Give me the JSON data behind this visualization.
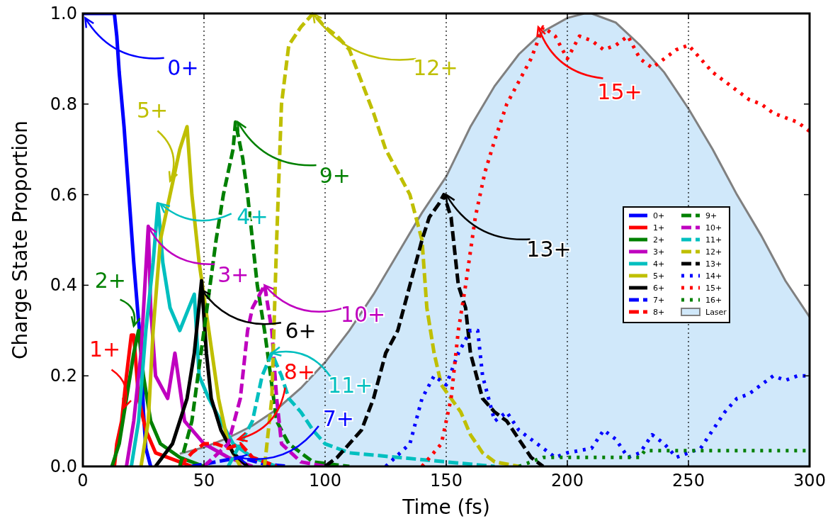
{
  "chart_data": {
    "type": "line",
    "xlabel": "Time (fs)",
    "ylabel": "Charge State Proportion",
    "xlim": [
      0,
      300
    ],
    "ylim": [
      0,
      1
    ],
    "xticks": [
      0,
      50,
      100,
      150,
      200,
      250,
      300
    ],
    "yticks": [
      {
        "value": 0,
        "label": "0.0"
      },
      {
        "value": 0.2,
        "label": "0.2"
      },
      {
        "value": 0.4,
        "label": "0.4"
      },
      {
        "value": 0.6,
        "label": "0.6"
      },
      {
        "value": 0.8,
        "label": "0.8"
      },
      {
        "value": 1,
        "label": "1.0"
      }
    ],
    "grid": "x",
    "legend": "right",
    "series": [
      {
        "name": "Laser",
        "type": "area",
        "color": "#d0e8fa",
        "line_style": "solid",
        "x": [
          40,
          50,
          60,
          70,
          80,
          90,
          100,
          110,
          120,
          130,
          140,
          150,
          160,
          170,
          180,
          190,
          200,
          207,
          210,
          220,
          230,
          240,
          250,
          260,
          270,
          280,
          290,
          300
        ],
        "values": [
          0.028,
          0.042,
          0.063,
          0.09,
          0.126,
          0.173,
          0.23,
          0.3,
          0.38,
          0.47,
          0.56,
          0.64,
          0.75,
          0.84,
          0.91,
          0.96,
          0.99,
          1.0,
          1.0,
          0.98,
          0.93,
          0.87,
          0.79,
          0.7,
          0.6,
          0.51,
          0.41,
          0.33
        ]
      },
      {
        "name": "0+",
        "color": "#0000ff",
        "line_style": "solid",
        "x": [
          0,
          13,
          14,
          15,
          17,
          19,
          21,
          23,
          24,
          25,
          26,
          28
        ],
        "values": [
          1.0,
          1.0,
          0.95,
          0.87,
          0.75,
          0.6,
          0.45,
          0.32,
          0.27,
          0.12,
          0.04,
          0.0
        ]
      },
      {
        "name": "1+",
        "color": "#ff0000",
        "line_style": "solid",
        "x": [
          13,
          14,
          16,
          18,
          20,
          21,
          23,
          26,
          30,
          40,
          45
        ],
        "values": [
          0,
          0.05,
          0.1,
          0.2,
          0.29,
          0.29,
          0.15,
          0.08,
          0.03,
          0.01,
          0
        ]
      },
      {
        "name": "2+",
        "color": "#008000",
        "line_style": "solid",
        "x": [
          12,
          15,
          18,
          21,
          23,
          25,
          28,
          32,
          40,
          50
        ],
        "values": [
          0,
          0.05,
          0.15,
          0.25,
          0.3,
          0.2,
          0.1,
          0.05,
          0.02,
          0
        ]
      },
      {
        "name": "3+",
        "color": "#bf00bf",
        "line_style": "solid",
        "x": [
          18,
          21,
          24,
          27,
          28,
          30,
          35,
          38,
          42,
          50,
          60,
          70
        ],
        "values": [
          0,
          0.1,
          0.25,
          0.53,
          0.35,
          0.2,
          0.15,
          0.25,
          0.1,
          0.05,
          0.02,
          0
        ]
      },
      {
        "name": "4+",
        "color": "#00bfbf",
        "line_style": "solid",
        "x": [
          20,
          23,
          26,
          29,
          31,
          33,
          36,
          40,
          46,
          48,
          52,
          57,
          62,
          70,
          80
        ],
        "values": [
          0,
          0.1,
          0.3,
          0.45,
          0.58,
          0.45,
          0.35,
          0.3,
          0.38,
          0.2,
          0.15,
          0.1,
          0.05,
          0.02,
          0
        ]
      },
      {
        "name": "5+",
        "color": "#bfbf00",
        "line_style": "solid",
        "x": [
          24,
          27,
          29,
          32,
          36,
          40,
          43,
          45,
          48,
          52,
          56,
          60,
          65
        ],
        "values": [
          0,
          0.1,
          0.3,
          0.5,
          0.6,
          0.7,
          0.75,
          0.6,
          0.45,
          0.3,
          0.15,
          0.05,
          0
        ]
      },
      {
        "name": "6+",
        "color": "#000000",
        "line_style": "solid",
        "x": [
          30,
          37,
          43,
          46,
          49,
          51,
          53,
          57,
          62,
          68
        ],
        "values": [
          0,
          0.05,
          0.15,
          0.25,
          0.41,
          0.25,
          0.15,
          0.08,
          0.03,
          0
        ]
      },
      {
        "name": "7+",
        "color": "#0000ff",
        "line_style": "dashed",
        "x": [
          45,
          55,
          65,
          75,
          85
        ],
        "values": [
          0,
          0.01,
          0.02,
          0.005,
          0
        ]
      },
      {
        "name": "8+",
        "color": "#ff0000",
        "line_style": "dashed",
        "x": [
          40,
          45,
          50,
          55,
          60,
          65,
          70,
          75,
          80
        ],
        "values": [
          0,
          0.03,
          0.05,
          0.05,
          0.04,
          0.05,
          0.02,
          0.01,
          0
        ]
      },
      {
        "name": "9+",
        "color": "#008000",
        "line_style": "dashed",
        "x": [
          40,
          45,
          50,
          55,
          58,
          62,
          63,
          66,
          68,
          70,
          72,
          75,
          80,
          85,
          95,
          110
        ],
        "values": [
          0,
          0.1,
          0.3,
          0.5,
          0.6,
          0.7,
          0.76,
          0.68,
          0.6,
          0.5,
          0.4,
          0.3,
          0.1,
          0.05,
          0.01,
          0
        ]
      },
      {
        "name": "10+",
        "color": "#bf00bf",
        "line_style": "dashed",
        "x": [
          50,
          60,
          65,
          68,
          70,
          73,
          75,
          78,
          80,
          82,
          90,
          100
        ],
        "values": [
          0,
          0.05,
          0.15,
          0.3,
          0.35,
          0.38,
          0.4,
          0.3,
          0.15,
          0.05,
          0.01,
          0
        ]
      },
      {
        "name": "11+",
        "color": "#00bfbf",
        "line_style": "dashed",
        "x": [
          60,
          70,
          74,
          78,
          82,
          85,
          90,
          95,
          100,
          110,
          130,
          150,
          170
        ],
        "values": [
          0,
          0.1,
          0.2,
          0.25,
          0.2,
          0.15,
          0.12,
          0.08,
          0.05,
          0.03,
          0.02,
          0.01,
          0
        ]
      },
      {
        "name": "12+",
        "color": "#bfbf00",
        "line_style": "dashed",
        "x": [
          75,
          78,
          80,
          82,
          85,
          90,
          95,
          100,
          105,
          110,
          115,
          120,
          125,
          130,
          135,
          140,
          142,
          145,
          148,
          152,
          156,
          160,
          165,
          170,
          180
        ],
        "values": [
          0,
          0.15,
          0.5,
          0.8,
          0.93,
          0.97,
          1.0,
          0.97,
          0.95,
          0.92,
          0.85,
          0.78,
          0.7,
          0.65,
          0.6,
          0.5,
          0.35,
          0.25,
          0.18,
          0.15,
          0.12,
          0.07,
          0.03,
          0.01,
          0
        ]
      },
      {
        "name": "13+",
        "color": "#000000",
        "line_style": "dashed",
        "x": [
          100,
          105,
          110,
          115,
          120,
          125,
          130,
          135,
          140,
          143,
          147,
          149,
          152,
          155,
          158,
          160,
          165,
          170,
          175,
          180,
          185,
          190
        ],
        "values": [
          0,
          0.02,
          0.05,
          0.08,
          0.15,
          0.25,
          0.3,
          0.4,
          0.5,
          0.55,
          0.58,
          0.6,
          0.55,
          0.4,
          0.35,
          0.25,
          0.15,
          0.12,
          0.1,
          0.06,
          0.02,
          0
        ]
      },
      {
        "name": "14+",
        "color": "#0000ff",
        "line_style": "dotted",
        "x": [
          125,
          135,
          140,
          145,
          150,
          155,
          160,
          163,
          165,
          170,
          175,
          180,
          185,
          190,
          195,
          200,
          210,
          215,
          220,
          225,
          230,
          235,
          240,
          245,
          250,
          255,
          260,
          265,
          270,
          275,
          280,
          285,
          290,
          295,
          300
        ],
        "values": [
          0,
          0.05,
          0.15,
          0.2,
          0.18,
          0.25,
          0.3,
          0.3,
          0.2,
          0.1,
          0.12,
          0.08,
          0.06,
          0.04,
          0.02,
          0.03,
          0.04,
          0.08,
          0.06,
          0.02,
          0.03,
          0.07,
          0.05,
          0.02,
          0.03,
          0.04,
          0.08,
          0.12,
          0.15,
          0.16,
          0.18,
          0.2,
          0.19,
          0.2,
          0.2
        ]
      },
      {
        "name": "15+",
        "color": "#ff0000",
        "line_style": "dotted",
        "x": [
          140,
          148,
          152,
          155,
          158,
          162,
          166,
          170,
          175,
          180,
          185,
          190,
          195,
          200,
          205,
          210,
          215,
          220,
          225,
          230,
          235,
          240,
          245,
          250,
          255,
          260,
          265,
          270,
          275,
          280,
          285,
          290,
          295,
          300
        ],
        "values": [
          0,
          0.05,
          0.15,
          0.3,
          0.4,
          0.55,
          0.65,
          0.72,
          0.8,
          0.85,
          0.9,
          0.97,
          0.95,
          0.9,
          0.95,
          0.94,
          0.92,
          0.93,
          0.95,
          0.9,
          0.88,
          0.9,
          0.92,
          0.93,
          0.9,
          0.87,
          0.85,
          0.83,
          0.81,
          0.8,
          0.78,
          0.77,
          0.76,
          0.74
        ]
      },
      {
        "name": "16+",
        "color": "#008000",
        "line_style": "dotted",
        "x": [
          180,
          190,
          230,
          232,
          300
        ],
        "values": [
          0,
          0.02,
          0.02,
          0.035,
          0.035
        ]
      }
    ],
    "annotations": [
      {
        "text": "0+",
        "x": 1,
        "y": 0.99
      },
      {
        "text": "1+",
        "x": 17,
        "y": 0.13
      },
      {
        "text": "2+",
        "x": 21,
        "y": 0.31
      },
      {
        "text": "3+",
        "x": 27,
        "y": 0.53
      },
      {
        "text": "4+",
        "x": 32,
        "y": 0.58
      },
      {
        "text": "5+",
        "x": 36,
        "y": 0.63
      },
      {
        "text": "6+",
        "x": 49,
        "y": 0.39
      },
      {
        "text": "7+",
        "x": 64,
        "y": 0.02
      },
      {
        "text": "8+",
        "x": 64,
        "y": 0.06
      },
      {
        "text": "9+",
        "x": 64,
        "y": 0.76
      },
      {
        "text": "10+",
        "x": 75,
        "y": 0.4
      },
      {
        "text": "11+",
        "x": 78,
        "y": 0.25
      },
      {
        "text": "12+",
        "x": 95,
        "y": 1.0
      },
      {
        "text": "13+",
        "x": 150,
        "y": 0.6
      },
      {
        "text": "15+",
        "x": 188,
        "y": 0.97
      }
    ]
  }
}
